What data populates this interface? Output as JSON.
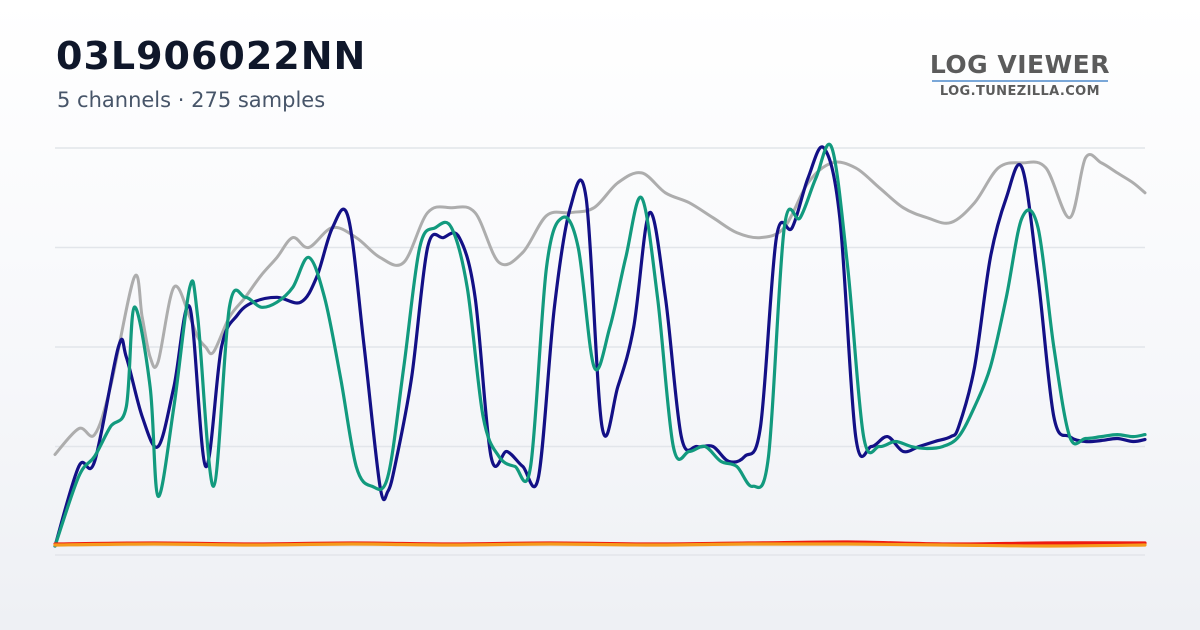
{
  "header": {
    "title": "03L906022NN",
    "subtitle": "5 channels · 275 samples"
  },
  "brand": {
    "name": "LOG VIEWER",
    "url": "LOG.TUNEZILLA.COM"
  },
  "chart_data": {
    "type": "line",
    "title": "",
    "xlabel": "",
    "ylabel": "",
    "grid": true,
    "xlim": [
      0,
      275
    ],
    "ylim": [
      0,
      400
    ],
    "series": [
      {
        "color": "#adadad",
        "x": [
          0,
          6,
          10,
          14,
          20,
          22,
          24,
          26,
          30,
          34,
          36,
          38,
          40,
          44,
          48,
          52,
          56,
          60,
          64,
          70,
          76,
          82,
          88,
          94,
          100,
          106,
          112,
          118,
          124,
          130,
          136,
          142,
          148,
          154,
          160,
          166,
          172,
          178,
          184,
          190,
          196,
          202,
          208,
          214,
          220,
          226,
          232,
          238,
          244,
          250,
          256,
          260,
          264,
          268,
          272,
          275
        ],
        "values": [
          92,
          118,
          112,
          160,
          270,
          230,
          190,
          185,
          260,
          230,
          210,
          200,
          195,
          230,
          250,
          272,
          290,
          310,
          300,
          320,
          310,
          290,
          285,
          335,
          340,
          335,
          285,
          295,
          332,
          335,
          340,
          365,
          375,
          355,
          345,
          330,
          315,
          310,
          320,
          365,
          385,
          380,
          360,
          340,
          330,
          325,
          345,
          380,
          385,
          380,
          330,
          390,
          385,
          375,
          365,
          355
        ]
      },
      {
        "color": "#131086",
        "x": [
          0,
          6,
          10,
          16,
          18,
          22,
          26,
          30,
          34,
          38,
          42,
          46,
          50,
          56,
          62,
          66,
          70,
          74,
          78,
          82,
          84,
          86,
          90,
          94,
          98,
          102,
          106,
          110,
          114,
          118,
          122,
          126,
          130,
          134,
          138,
          142,
          146,
          150,
          154,
          158,
          162,
          166,
          170,
          174,
          178,
          182,
          186,
          190,
          194,
          198,
          202,
          206,
          210,
          214,
          218,
          222,
          226,
          228,
          232,
          236,
          240,
          244,
          248,
          252,
          256,
          260,
          264,
          268,
          272,
          275
        ],
        "values": [
          0,
          80,
          85,
          200,
          190,
          130,
          100,
          160,
          240,
          80,
          200,
          232,
          245,
          250,
          245,
          270,
          320,
          330,
          200,
          60,
          55,
          85,
          170,
          300,
          310,
          310,
          250,
          90,
          95,
          80,
          70,
          240,
          340,
          350,
          120,
          160,
          220,
          335,
          250,
          110,
          100,
          100,
          85,
          90,
          120,
          310,
          320,
          370,
          400,
          330,
          110,
          100,
          110,
          95,
          100,
          105,
          110,
          120,
          180,
          290,
          350,
          380,
          270,
          130,
          110,
          105,
          106,
          108,
          105,
          107
        ]
      },
      {
        "color": "#129a7e",
        "x": [
          0,
          6,
          10,
          14,
          18,
          20,
          24,
          26,
          30,
          34,
          36,
          40,
          44,
          48,
          52,
          56,
          60,
          64,
          68,
          72,
          76,
          80,
          84,
          88,
          92,
          96,
          100,
          104,
          108,
          112,
          116,
          120,
          124,
          128,
          132,
          136,
          140,
          144,
          148,
          152,
          156,
          160,
          164,
          168,
          172,
          176,
          180,
          184,
          188,
          192,
          196,
          200,
          204,
          208,
          212,
          216,
          220,
          224,
          228,
          232,
          236,
          240,
          244,
          248,
          252,
          256,
          260,
          264,
          268,
          272,
          275
        ],
        "values": [
          0,
          70,
          90,
          120,
          140,
          240,
          160,
          50,
          140,
          260,
          230,
          60,
          240,
          250,
          240,
          245,
          260,
          290,
          250,
          170,
          80,
          60,
          70,
          180,
          300,
          320,
          320,
          260,
          130,
          90,
          80,
          80,
          280,
          330,
          300,
          180,
          220,
          290,
          350,
          250,
          100,
          95,
          100,
          85,
          80,
          60,
          90,
          320,
          330,
          370,
          400,
          280,
          110,
          100,
          105,
          100,
          98,
          100,
          110,
          140,
          180,
          250,
          330,
          320,
          200,
          110,
          108,
          110,
          112,
          110,
          112
        ]
      },
      {
        "color": "#ee1a10",
        "x": [
          0,
          25,
          50,
          75,
          100,
          125,
          150,
          175,
          200,
          225,
          250,
          275
        ],
        "values": [
          2,
          3,
          2,
          3,
          2,
          3,
          2,
          3,
          4,
          2,
          3,
          3
        ]
      },
      {
        "color": "#f59a1c",
        "x": [
          0,
          25,
          50,
          75,
          100,
          125,
          150,
          175,
          200,
          225,
          250,
          275
        ],
        "values": [
          1,
          2,
          1,
          2,
          1,
          2,
          1,
          2,
          2,
          1,
          0,
          1
        ]
      }
    ]
  }
}
